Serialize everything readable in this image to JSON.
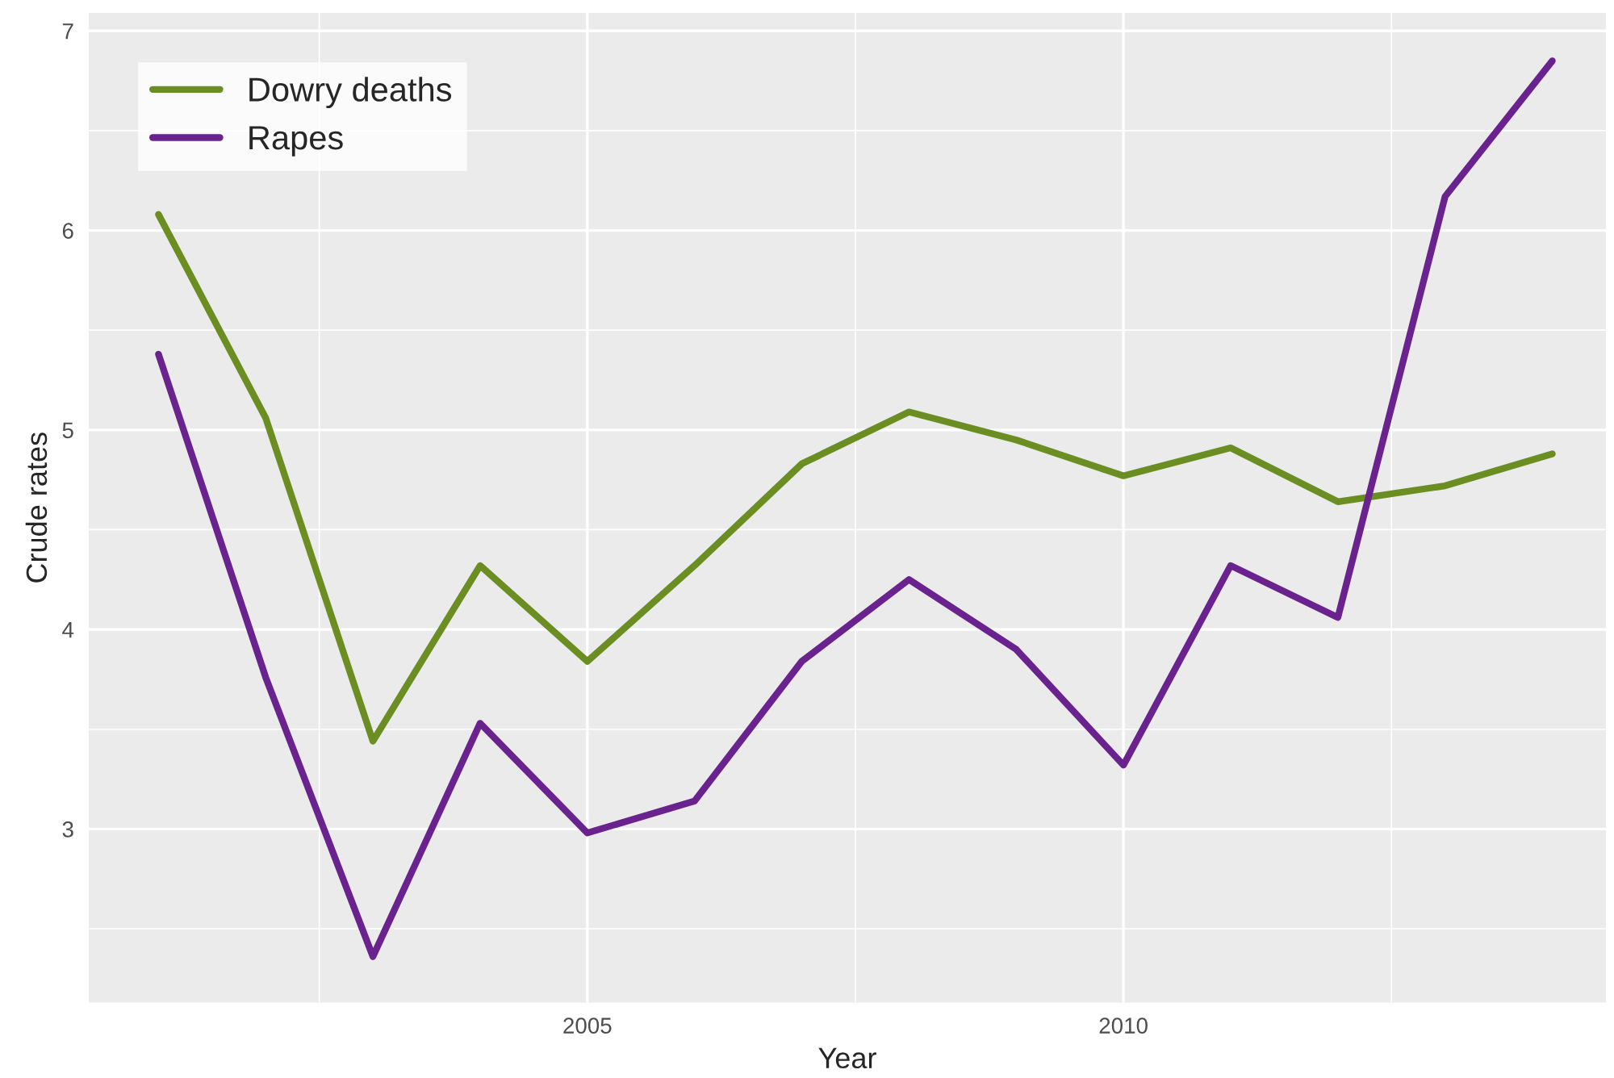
{
  "chart_data": {
    "type": "line",
    "xlabel": "Year",
    "ylabel": "Crude rates",
    "x": [
      2001,
      2002,
      2003,
      2004,
      2005,
      2006,
      2007,
      2008,
      2009,
      2010,
      2011,
      2012,
      2013,
      2014
    ],
    "series": [
      {
        "name": "Dowry deaths",
        "color": "#6b8e23",
        "values": [
          6.08,
          5.06,
          3.44,
          4.32,
          3.84,
          4.32,
          4.83,
          5.09,
          4.95,
          4.77,
          4.91,
          4.64,
          4.72,
          4.88
        ]
      },
      {
        "name": "Rapes",
        "color": "#6a228f",
        "values": [
          5.38,
          3.76,
          2.36,
          3.53,
          2.98,
          3.14,
          3.84,
          4.25,
          3.9,
          3.32,
          4.32,
          4.06,
          6.17,
          6.85
        ]
      }
    ],
    "xlim": [
      2000.35,
      2014.5
    ],
    "ylim": [
      2.13,
      7.09
    ],
    "xticks": [
      2005,
      2010
    ],
    "yticks": [
      3,
      4,
      5,
      6,
      7
    ],
    "grid": true,
    "legend": "top left",
    "line_style": "solid",
    "marker": "none"
  }
}
